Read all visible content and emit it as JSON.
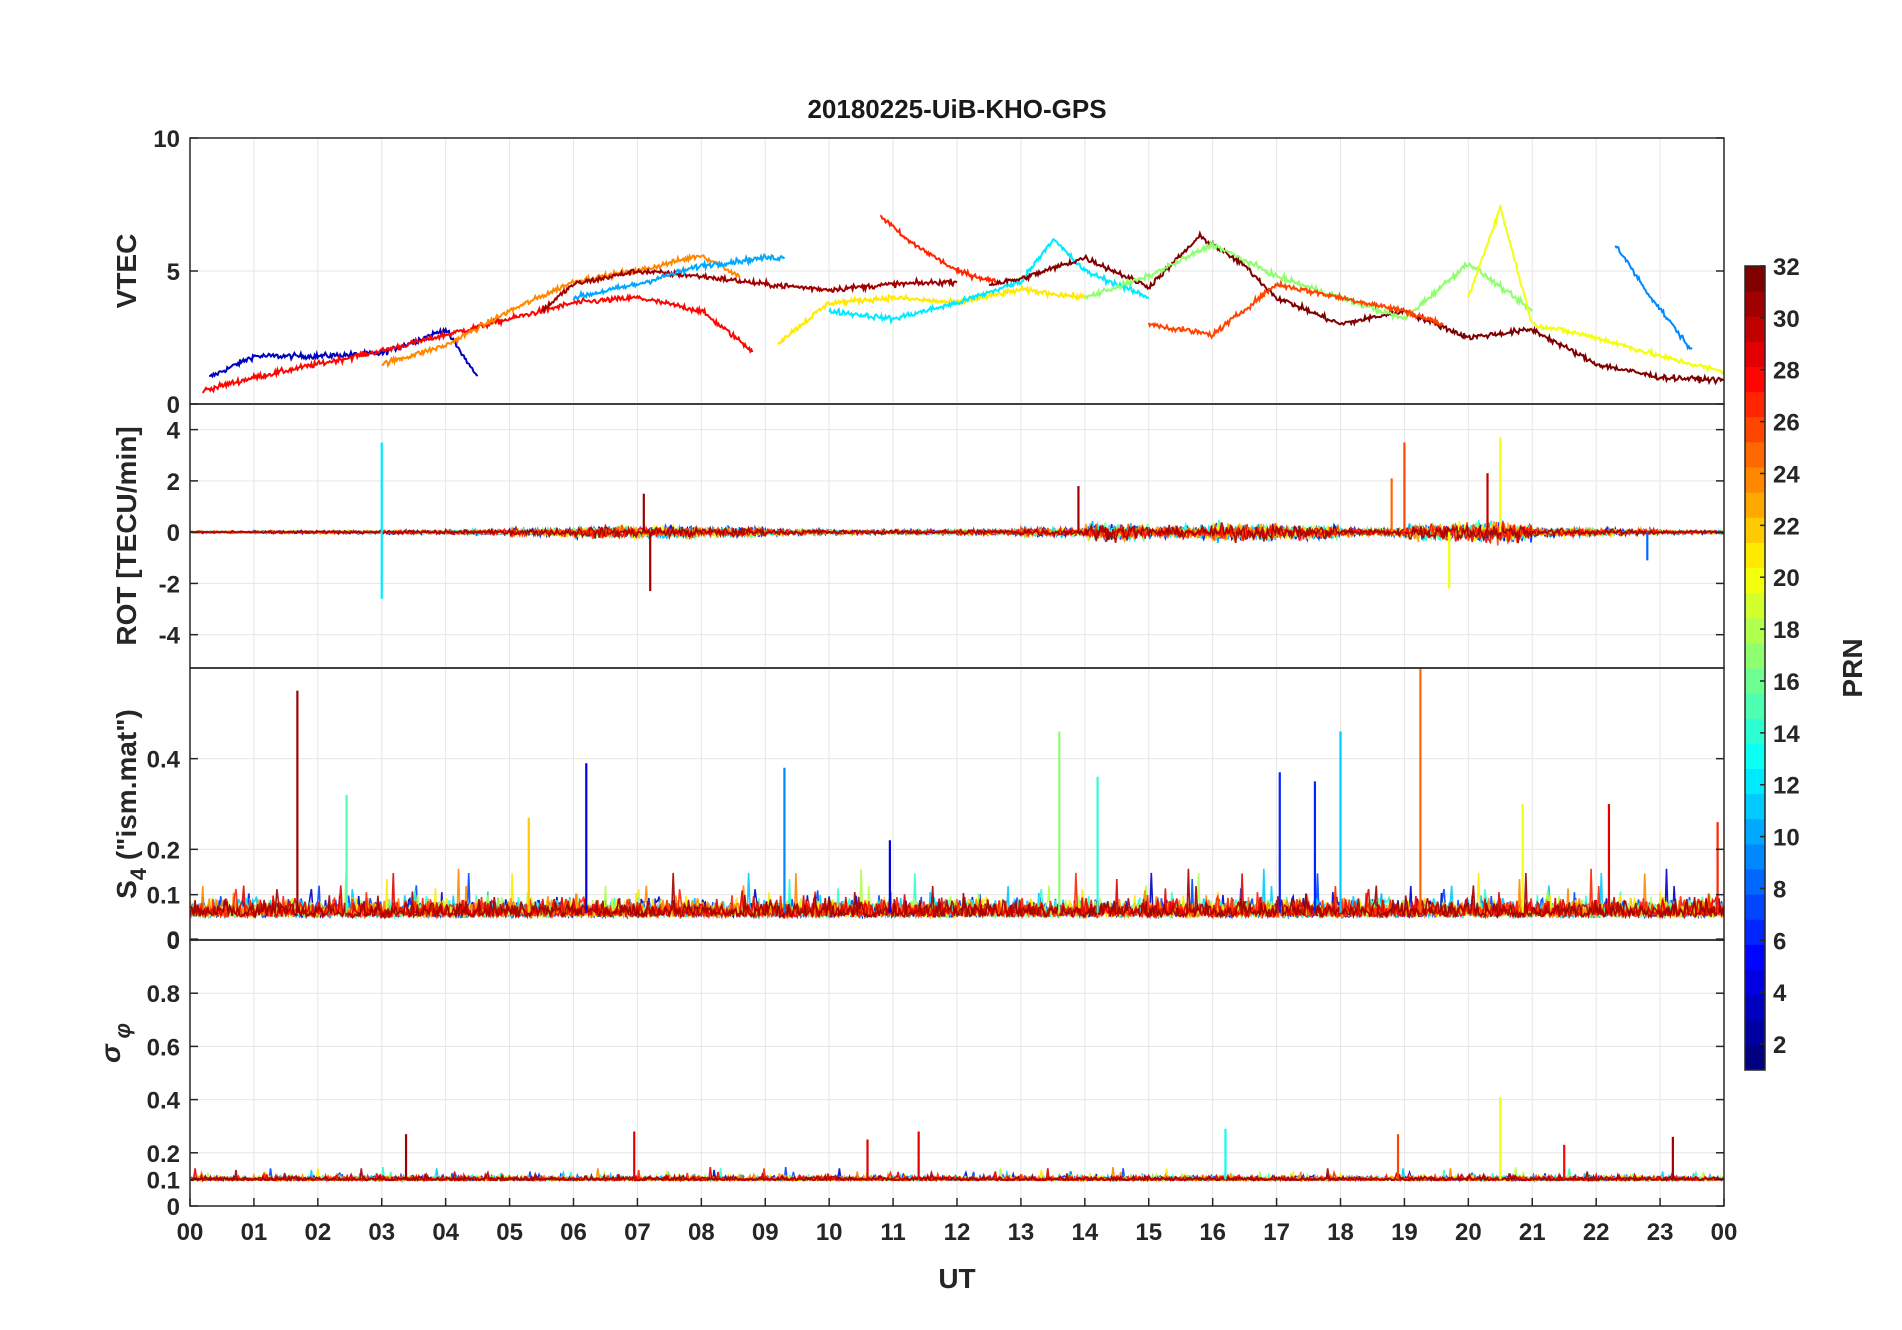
{
  "chart_data": {
    "type": "line",
    "title": "20180225-UiB-KHO-GPS",
    "xlabel": "UT",
    "x_tick_labels": [
      "00",
      "01",
      "02",
      "03",
      "04",
      "05",
      "06",
      "07",
      "08",
      "09",
      "10",
      "11",
      "12",
      "13",
      "14",
      "15",
      "16",
      "17",
      "18",
      "19",
      "20",
      "21",
      "22",
      "23",
      "00"
    ],
    "xlim": [
      0,
      24
    ],
    "grid": true,
    "colorbar": {
      "label": "PRN",
      "range": [
        1,
        32
      ],
      "tick_labels": [
        "2",
        "4",
        "6",
        "8",
        "10",
        "12",
        "14",
        "16",
        "18",
        "20",
        "22",
        "24",
        "26",
        "28",
        "30",
        "32"
      ],
      "colormap": "jet"
    },
    "panels": [
      {
        "name": "vtec",
        "ylabel": "VTEC",
        "ylim": [
          0,
          10
        ],
        "y_tick_labels": [
          "0",
          "5",
          "10"
        ],
        "y_tick_values": [
          0,
          5,
          10
        ],
        "representative_series": [
          {
            "prn": 3,
            "x": [
              0.3,
              1.0,
              2.0,
              3.0,
              4.0,
              4.5
            ],
            "values": [
              1.0,
              1.8,
              1.8,
              1.9,
              2.8,
              1.0
            ]
          },
          {
            "prn": 28,
            "x": [
              0.2,
              1.0,
              2.0,
              3.0,
              4.0,
              5.0,
              6.0,
              7.0,
              8.0,
              8.8
            ],
            "values": [
              0.5,
              1.0,
              1.5,
              2.0,
              2.6,
              3.2,
              3.8,
              4.0,
              3.5,
              2.0
            ]
          },
          {
            "prn": 24,
            "x": [
              3.0,
              4.0,
              5.0,
              6.0,
              7.0,
              8.0,
              8.6
            ],
            "values": [
              1.5,
              2.2,
              3.5,
              4.6,
              5.0,
              5.6,
              4.8
            ]
          },
          {
            "prn": 31,
            "x": [
              5.5,
              6.0,
              7.0,
              8.0,
              9.0,
              10.0,
              11.0,
              12.0
            ],
            "values": [
              3.5,
              4.5,
              5.0,
              4.8,
              4.5,
              4.3,
              4.5,
              4.6
            ]
          },
          {
            "prn": 10,
            "x": [
              6.0,
              7.0,
              8.0,
              9.0,
              9.3
            ],
            "values": [
              4.0,
              4.5,
              5.2,
              5.5,
              5.5
            ]
          },
          {
            "prn": 21,
            "x": [
              9.2,
              10.0,
              11.0,
              12.0,
              13.0,
              14.0
            ],
            "values": [
              2.3,
              3.8,
              4.0,
              3.8,
              4.3,
              4.0
            ]
          },
          {
            "prn": 27,
            "x": [
              10.8,
              11.2,
              12.0,
              12.6
            ],
            "values": [
              7.1,
              6.2,
              5.0,
              4.6
            ]
          },
          {
            "prn": 12,
            "x": [
              10.0,
              11.0,
              12.0,
              13.0,
              13.5,
              14.0,
              15.0
            ],
            "values": [
              3.5,
              3.2,
              3.8,
              4.6,
              6.2,
              5.0,
              4.0
            ]
          },
          {
            "prn": 32,
            "x": [
              12.5,
              13.0,
              14.0,
              15.0,
              15.8,
              16.5,
              17.0,
              18.0,
              19.0,
              20.0,
              21.0,
              22.0,
              23.0,
              24.0
            ],
            "values": [
              4.5,
              4.7,
              5.5,
              4.4,
              6.3,
              5.2,
              4.0,
              3.0,
              3.5,
              2.5,
              2.8,
              1.5,
              1.0,
              0.9
            ]
          },
          {
            "prn": 17,
            "x": [
              14.0,
              15.0,
              16.0,
              17.0,
              18.0,
              19.0,
              20.0,
              21.0
            ],
            "values": [
              4.0,
              4.8,
              6.0,
              4.8,
              4.0,
              3.2,
              5.3,
              3.5
            ]
          },
          {
            "prn": 20,
            "x": [
              20.0,
              20.5,
              21.0,
              22.0,
              23.0,
              24.0
            ],
            "values": [
              4.0,
              7.4,
              3.0,
              2.5,
              1.8,
              1.2
            ]
          },
          {
            "prn": 9,
            "x": [
              22.3,
              22.8,
              23.5
            ],
            "values": [
              6.0,
              4.2,
              2.0
            ]
          },
          {
            "prn": 26,
            "x": [
              15.0,
              16.0,
              17.0,
              18.0,
              19.0,
              19.6
            ],
            "values": [
              3.0,
              2.6,
              4.5,
              4.0,
              3.5,
              3.0
            ]
          }
        ]
      },
      {
        "name": "rot",
        "ylabel": "ROT [TECU/min]",
        "ylim": [
          -5.3,
          5
        ],
        "y_tick_labels": [
          "-4",
          "-2",
          "0",
          "2",
          "4"
        ],
        "y_tick_values": [
          -4,
          -2,
          0,
          2,
          4
        ],
        "noise_amplitude_by_hour": [
          0.05,
          0.08,
          0.08,
          0.1,
          0.12,
          0.2,
          0.3,
          0.3,
          0.25,
          0.15,
          0.12,
          0.12,
          0.15,
          0.2,
          0.45,
          0.3,
          0.45,
          0.35,
          0.2,
          0.45,
          0.5,
          0.2,
          0.15,
          0.1
        ],
        "spikes": [
          {
            "prn": 12,
            "x": 3.0,
            "values": [
              3.5,
              -2.6
            ]
          },
          {
            "prn": 31,
            "x": 7.2,
            "values": [
              -2.3
            ]
          },
          {
            "prn": 31,
            "x": 7.1,
            "values": [
              1.5
            ]
          },
          {
            "prn": 25,
            "x": 18.8,
            "values": [
              2.1
            ]
          },
          {
            "prn": 26,
            "x": 19.0,
            "values": [
              3.5
            ]
          },
          {
            "prn": 20,
            "x": 20.5,
            "values": [
              3.7
            ]
          },
          {
            "prn": 20,
            "x": 19.7,
            "values": [
              -2.2
            ]
          },
          {
            "prn": 30,
            "x": 20.3,
            "values": [
              2.3
            ]
          },
          {
            "prn": 31,
            "x": 13.9,
            "values": [
              1.8
            ]
          },
          {
            "prn": 8,
            "x": 22.8,
            "values": [
              -1.1
            ]
          }
        ]
      },
      {
        "name": "s4",
        "ylabel": "S4 (\"ism.mat\")",
        "ylabel_main": "S",
        "ylabel_sub": "4",
        "ylabel_rest": " (\"ism.mat\")",
        "ylim": [
          0,
          0.6
        ],
        "y_tick_labels": [
          "0",
          "0",
          "0.1",
          "0.2",
          "0.4"
        ],
        "y_tick_values": [
          0,
          0.002,
          0.1,
          0.2,
          0.4
        ],
        "baseline": 0.06,
        "spikes": [
          {
            "prn": 31,
            "x": 1.68,
            "value": 0.55
          },
          {
            "prn": 15,
            "x": 2.45,
            "value": 0.32
          },
          {
            "prn": 4,
            "x": 6.2,
            "value": 0.39
          },
          {
            "prn": 9,
            "x": 9.3,
            "value": 0.38
          },
          {
            "prn": 4,
            "x": 10.95,
            "value": 0.22
          },
          {
            "prn": 17,
            "x": 13.6,
            "value": 0.46
          },
          {
            "prn": 14,
            "x": 14.2,
            "value": 0.36
          },
          {
            "prn": 6,
            "x": 17.05,
            "value": 0.37
          },
          {
            "prn": 6,
            "x": 17.6,
            "value": 0.35
          },
          {
            "prn": 11,
            "x": 18.0,
            "value": 0.46
          },
          {
            "prn": 25,
            "x": 19.25,
            "value": 0.6
          },
          {
            "prn": 20,
            "x": 20.85,
            "value": 0.3
          },
          {
            "prn": 29,
            "x": 22.2,
            "value": 0.3
          },
          {
            "prn": 27,
            "x": 23.9,
            "value": 0.26
          },
          {
            "prn": 22,
            "x": 5.3,
            "value": 0.27
          }
        ]
      },
      {
        "name": "sigma_phi",
        "ylabel": "σ φ",
        "ylabel_main": "σ",
        "ylabel_sub": "φ",
        "ylim": [
          0,
          1
        ],
        "y_tick_labels": [
          "0",
          "0.1",
          "0.2",
          "0.4",
          "0.6",
          "0.8"
        ],
        "y_tick_values": [
          0,
          0.1,
          0.2,
          0.4,
          0.6,
          0.8
        ],
        "baseline": 0.1,
        "spikes": [
          {
            "prn": 31,
            "x": 3.38,
            "value": 0.27
          },
          {
            "prn": 29,
            "x": 6.95,
            "value": 0.28
          },
          {
            "prn": 29,
            "x": 10.6,
            "value": 0.25
          },
          {
            "prn": 29,
            "x": 11.4,
            "value": 0.28
          },
          {
            "prn": 13,
            "x": 16.2,
            "value": 0.29
          },
          {
            "prn": 26,
            "x": 18.9,
            "value": 0.27
          },
          {
            "prn": 20,
            "x": 20.5,
            "value": 0.41
          },
          {
            "prn": 28,
            "x": 21.5,
            "value": 0.23
          },
          {
            "prn": 31,
            "x": 23.2,
            "value": 0.26
          }
        ]
      }
    ]
  }
}
